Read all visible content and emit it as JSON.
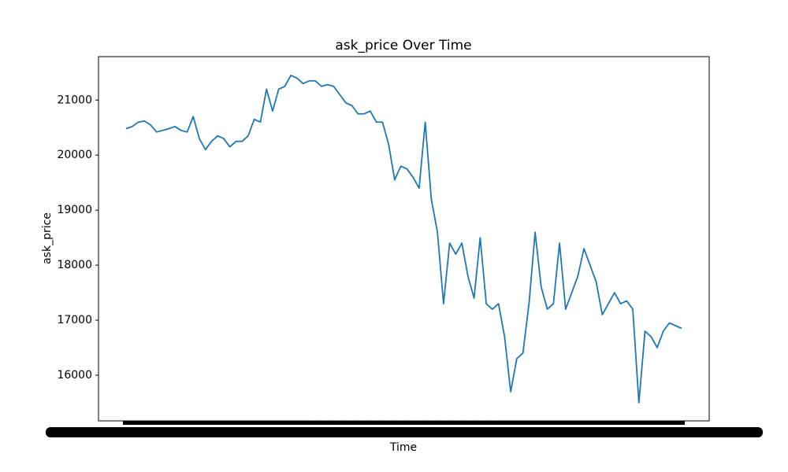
{
  "chart_data": {
    "type": "line",
    "title": "ask_price Over Time",
    "x_label": "Time",
    "y_label": "ask_price",
    "categories": [
      null,
      null,
      null,
      null,
      null,
      null,
      null,
      null,
      null,
      null,
      null,
      null,
      null,
      null,
      null,
      null,
      null,
      null,
      null,
      null,
      null,
      null,
      null,
      null,
      null,
      null,
      null,
      null,
      null,
      null,
      null,
      null,
      null,
      null,
      null,
      null,
      null,
      null,
      null,
      null,
      null,
      null,
      null,
      null,
      null,
      null,
      null,
      null,
      null,
      null,
      null,
      null,
      null,
      null,
      null,
      null,
      null,
      null,
      null,
      null,
      null,
      null,
      null,
      null,
      null,
      null,
      null,
      null,
      null,
      null,
      null,
      null,
      null,
      null,
      null,
      null,
      null,
      null,
      null,
      null,
      null,
      null,
      null,
      null,
      null,
      null,
      null,
      null,
      null,
      null,
      null,
      null
    ],
    "series": [
      {
        "name": "ask_price",
        "color": "#1f77b4",
        "values": [
          20480,
          20520,
          20600,
          20620,
          20550,
          20420,
          20450,
          20480,
          20520,
          20450,
          20420,
          20700,
          20300,
          20100,
          20250,
          20350,
          20300,
          20150,
          20250,
          20250,
          20350,
          20650,
          20600,
          21200,
          20800,
          21200,
          21250,
          21450,
          21400,
          21300,
          21350,
          21350,
          21250,
          21280,
          21250,
          21100,
          20950,
          20900,
          20750,
          20750,
          20800,
          20600,
          20600,
          20200,
          19550,
          19800,
          19750,
          19600,
          19400,
          20600,
          19200,
          18600,
          17300,
          18400,
          18200,
          18400,
          17800,
          17400,
          18500,
          17300,
          17200,
          17300,
          16700,
          15700,
          16300,
          16400,
          17300,
          18600,
          17600,
          17200,
          17300,
          18400,
          17200,
          17500,
          17800,
          18300,
          18000,
          17700,
          17100,
          17300,
          17500,
          17300,
          17350,
          17200,
          15500,
          16800,
          16700,
          16500,
          16800,
          16950,
          16900,
          16850
        ]
      }
    ],
    "ylim": [
      15170,
      21790
    ],
    "yticks": [
      16000,
      17000,
      18000,
      19000,
      20000,
      21000
    ],
    "grid": false
  }
}
